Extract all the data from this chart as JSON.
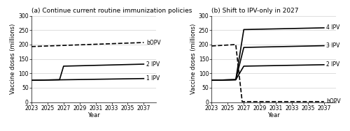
{
  "panel_a": {
    "title": "(a) Continue current routine immunization policies",
    "bopv": {
      "x": [
        2023,
        2037
      ],
      "y": [
        193,
        207
      ],
      "label": "bOPV",
      "style": "--"
    },
    "ipv2": {
      "x": [
        2023,
        2026.5,
        2027,
        2037
      ],
      "y": [
        76,
        78,
        125,
        132
      ],
      "label": "2 IPV",
      "style": "-"
    },
    "ipv1": {
      "x": [
        2023,
        2037
      ],
      "y": [
        76,
        82
      ],
      "label": "1 IPV",
      "style": "-"
    },
    "ylim": [
      0,
      300
    ],
    "yticks": [
      0,
      50,
      100,
      150,
      200,
      250,
      300
    ],
    "xticks": [
      2023,
      2025,
      2027,
      2029,
      2031,
      2033,
      2035,
      2037
    ],
    "xlabel": "Year",
    "ylabel": "Vaccine doses (millions)"
  },
  "panel_b": {
    "title": "(b) Shift to IPV-only in 2027",
    "bopv": {
      "x": [
        2023,
        2026,
        2026.8,
        2037
      ],
      "y": [
        195,
        200,
        2,
        2
      ],
      "label": "bOPV",
      "style": "--"
    },
    "ipv4": {
      "x": [
        2023,
        2026,
        2027,
        2037
      ],
      "y": [
        76,
        78,
        252,
        258
      ],
      "label": "4 IPV",
      "style": "-"
    },
    "ipv3": {
      "x": [
        2023,
        2026,
        2027,
        2037
      ],
      "y": [
        76,
        78,
        190,
        196
      ],
      "label": "3 IPV",
      "style": "-"
    },
    "ipv2": {
      "x": [
        2023,
        2026,
        2027,
        2037
      ],
      "y": [
        76,
        78,
        125,
        130
      ],
      "label": "2 IPV",
      "style": "-"
    },
    "ylim": [
      0,
      300
    ],
    "yticks": [
      0,
      50,
      100,
      150,
      200,
      250,
      300
    ],
    "xticks": [
      2023,
      2025,
      2027,
      2029,
      2031,
      2033,
      2035,
      2037
    ],
    "xlabel": "Year",
    "ylabel": "Vaccine doses (millions)"
  },
  "line_color": "#000000",
  "bg_color": "#ffffff",
  "grid_color": "#d0d0d0",
  "label_fontsize": 5.5,
  "tick_fontsize": 5.5,
  "title_fontsize": 6.5,
  "axis_label_fontsize": 6.0,
  "lw": 1.2
}
